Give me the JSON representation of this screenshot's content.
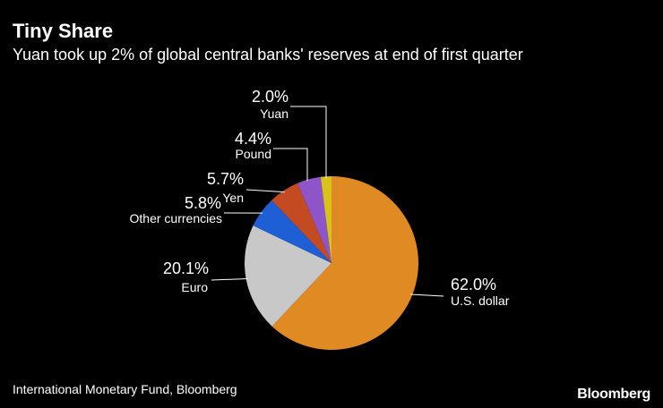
{
  "header": {
    "title": "Tiny Share",
    "subtitle": "Yuan took up 2% of global central banks' reserves at end of first quarter"
  },
  "footer": {
    "source": "International Monetary Fund, Bloomberg",
    "brand": "Bloomberg"
  },
  "chart_data": {
    "type": "pie",
    "title": "Tiny Share",
    "subtitle": "Yuan took up 2% of global central banks' reserves at end of first quarter",
    "slices": [
      {
        "label": "U.S. dollar",
        "value": 62.0,
        "display": "62.0%",
        "color": "#e08a23"
      },
      {
        "label": "Euro",
        "value": 20.1,
        "display": "20.1%",
        "color": "#c8c8c8"
      },
      {
        "label": "Other currencies",
        "value": 5.8,
        "display": "5.8%",
        "color": "#1f5fd6"
      },
      {
        "label": "Yen",
        "value": 5.7,
        "display": "5.7%",
        "color": "#c44a22"
      },
      {
        "label": "Pound",
        "value": 4.4,
        "display": "4.4%",
        "color": "#8e55c8"
      },
      {
        "label": "Yuan",
        "value": 2.0,
        "display": "2.0%",
        "color": "#d9c21a"
      }
    ]
  }
}
